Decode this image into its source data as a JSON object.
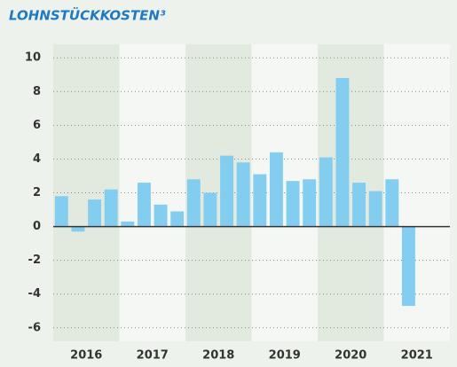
{
  "chart_data": {
    "type": "bar",
    "title": "LOHNSTÜCKKOSTEN³",
    "categories": [
      null,
      null,
      null,
      null,
      null,
      null,
      null,
      null,
      null,
      null,
      null,
      null,
      null,
      null,
      null,
      null,
      null,
      null,
      null,
      null,
      null,
      null
    ],
    "values": [
      1.8,
      -0.3,
      1.6,
      2.2,
      0.3,
      2.6,
      1.3,
      0.9,
      2.8,
      2.0,
      4.2,
      3.8,
      3.1,
      4.4,
      2.7,
      2.8,
      4.1,
      8.8,
      2.6,
      2.1,
      2.8,
      -4.7
    ],
    "groups": [
      "2016",
      "2017",
      "2018",
      "2019",
      "2020",
      "2021"
    ],
    "color": "#82cdf0",
    "ylim": [
      -6.8,
      10.8
    ],
    "yticks": [
      -6,
      -4,
      -2,
      0,
      2,
      4,
      6,
      8,
      10
    ],
    "grid": true
  }
}
